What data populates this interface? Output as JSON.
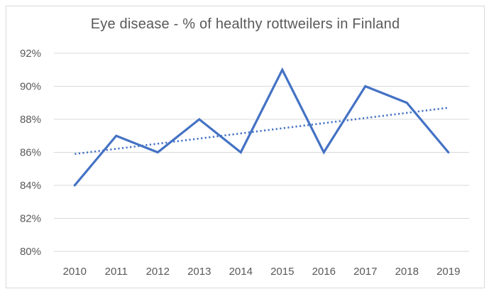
{
  "chart_data": {
    "type": "line",
    "title": "Eye disease - % of healthy rottweilers in Finland",
    "categories": [
      "2010",
      "2011",
      "2012",
      "2013",
      "2014",
      "2015",
      "2016",
      "2017",
      "2018",
      "2019"
    ],
    "series": [
      {
        "name": "% of healthy rottweilers",
        "values": [
          84,
          87,
          86,
          88,
          86,
          91,
          86,
          90,
          89,
          86
        ]
      }
    ],
    "trendline": {
      "type": "linear",
      "style": "dotted",
      "start_value": 85.9,
      "end_value": 88.7
    },
    "xlabel": "",
    "ylabel": "",
    "ylim": [
      80,
      92
    ],
    "ytick_step": 2,
    "ytick_suffix": "%",
    "grid": "horizontal-only",
    "legend": "none",
    "colors": {
      "series": "#4472C4",
      "trendline": "#4472C4",
      "gridline": "#D9D9D9",
      "axis_label": "#595959",
      "title": "#595959",
      "frame_border": "#D9D9D9",
      "background": "#FFFFFF"
    }
  }
}
